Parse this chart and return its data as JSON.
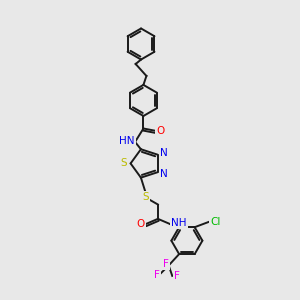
{
  "background_color": "#e8e8e8",
  "bond_color": "#1a1a1a",
  "lw": 1.4,
  "atom_colors": {
    "O": "#ff0000",
    "N": "#0000ee",
    "S": "#bbbb00",
    "Cl": "#00bb00",
    "F": "#ee00ee",
    "C": "#1a1a1a"
  },
  "figsize": [
    3.0,
    3.0
  ],
  "dpi": 100,
  "fs": 7.5
}
